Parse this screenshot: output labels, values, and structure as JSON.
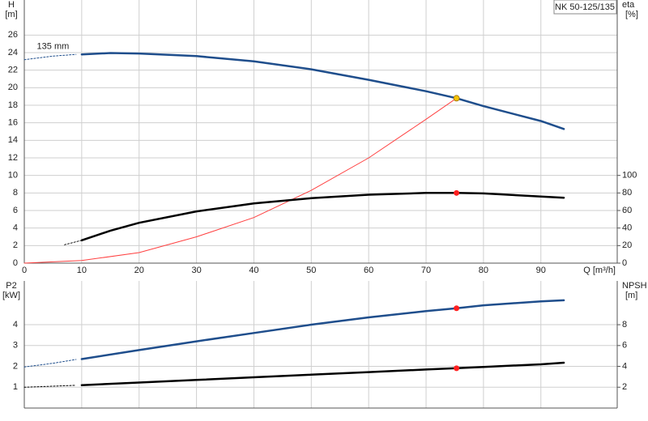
{
  "chart_data": [
    {
      "type": "line",
      "title": "NK 50-125/135",
      "ylabel": [
        "H",
        "[m]"
      ],
      "y2label": [
        "eta",
        "[%]"
      ],
      "xlabel": "Q [m³/h]",
      "xlim": [
        0,
        103.3
      ],
      "xticks": [
        0,
        10,
        20,
        30,
        40,
        50,
        60,
        70,
        80,
        90
      ],
      "show_xtick_labels": true,
      "ylim": [
        0,
        30
      ],
      "yticks": [
        0,
        2,
        4,
        6,
        8,
        10,
        12,
        14,
        16,
        18,
        20,
        22,
        24,
        26
      ],
      "y2lim": [
        0,
        300
      ],
      "y2ticks": [
        0,
        20,
        40,
        60,
        80,
        100
      ],
      "grid": true,
      "annotations": [
        {
          "text": "135 mm",
          "x": 5,
          "y": 24.7
        }
      ],
      "series": [
        {
          "color": "#1f4e8c",
          "style": "dashed",
          "axis": "y",
          "x": [
            0,
            5,
            9
          ],
          "values": [
            23.2,
            23.6,
            23.8
          ]
        },
        {
          "color": "#1f4e8c",
          "style": "solid",
          "axis": "y",
          "x": [
            10,
            15,
            20,
            30,
            40,
            50,
            60,
            70,
            75.3,
            80,
            90,
            94
          ],
          "values": [
            23.8,
            23.95,
            23.9,
            23.6,
            23.0,
            22.1,
            20.9,
            19.6,
            18.8,
            17.9,
            16.2,
            15.3
          ]
        },
        {
          "color": "#ff4040",
          "style": "thin",
          "axis": "y",
          "x": [
            0,
            10,
            20,
            30,
            40,
            50,
            60,
            70,
            75.3
          ],
          "values": [
            0,
            0.3,
            1.2,
            3.0,
            5.2,
            8.3,
            12.0,
            16.4,
            18.8
          ]
        },
        {
          "color": "#000000",
          "style": "dashed",
          "axis": "y2",
          "x": [
            7,
            10
          ],
          "values": [
            21,
            26
          ]
        },
        {
          "color": "#000000",
          "style": "solid",
          "axis": "y2",
          "x": [
            10,
            15,
            20,
            30,
            40,
            50,
            60,
            70,
            75.3,
            80,
            90,
            94
          ],
          "values": [
            26,
            37,
            46,
            59,
            68,
            74,
            78,
            80,
            80,
            79.5,
            76,
            74.6
          ]
        }
      ],
      "points": [
        {
          "color": "#f5c400",
          "axis": "y",
          "x": 75.3,
          "y": 18.8
        },
        {
          "color": "#ff2020",
          "axis": "y2",
          "x": 75.3,
          "y": 80
        }
      ]
    },
    {
      "type": "line",
      "ylabel": [
        "P2",
        "[kW]"
      ],
      "y2label": [
        "NPSH",
        "[m]"
      ],
      "xlim": [
        0,
        103.3
      ],
      "xticks": [
        0,
        10,
        20,
        30,
        40,
        50,
        60,
        70,
        80,
        90
      ],
      "show_xtick_labels": false,
      "ylim": [
        0,
        6.1
      ],
      "yticks": [
        1,
        2,
        3,
        4
      ],
      "y2lim": [
        0,
        12.2
      ],
      "y2ticks": [
        2,
        4,
        6,
        8
      ],
      "grid": true,
      "series": [
        {
          "color": "#1f4e8c",
          "style": "dashed",
          "axis": "y",
          "x": [
            0,
            5,
            9
          ],
          "values": [
            1.97,
            2.15,
            2.33
          ]
        },
        {
          "color": "#1f4e8c",
          "style": "solid",
          "axis": "y",
          "x": [
            10,
            20,
            30,
            40,
            50,
            60,
            70,
            75.3,
            80,
            90,
            94
          ],
          "values": [
            2.35,
            2.78,
            3.2,
            3.6,
            4.0,
            4.35,
            4.65,
            4.79,
            4.93,
            5.12,
            5.17
          ]
        },
        {
          "color": "#000000",
          "style": "dashed",
          "axis": "y2",
          "x": [
            0,
            5,
            9
          ],
          "values": [
            2.0,
            2.1,
            2.18
          ]
        },
        {
          "color": "#000000",
          "style": "solid",
          "axis": "y2",
          "x": [
            10,
            20,
            30,
            40,
            50,
            60,
            70,
            75.3,
            80,
            90,
            94
          ],
          "values": [
            2.2,
            2.45,
            2.7,
            2.95,
            3.2,
            3.45,
            3.7,
            3.82,
            3.95,
            4.2,
            4.35
          ]
        }
      ],
      "points": [
        {
          "color": "#ff2020",
          "axis": "y",
          "x": 75.3,
          "y": 4.79
        },
        {
          "color": "#ff2020",
          "axis": "y2",
          "x": 75.3,
          "y": 3.82
        }
      ]
    }
  ]
}
